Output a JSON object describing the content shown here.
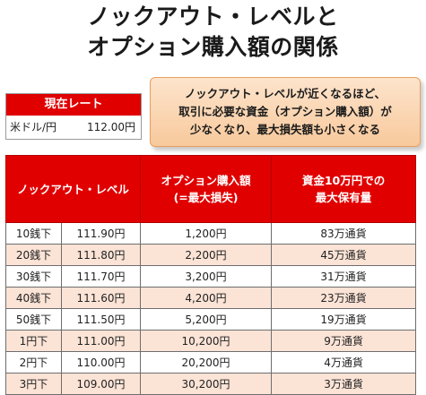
{
  "title": {
    "line1": "ノックアウト・レベルと",
    "line2": "オプション購入額の関係"
  },
  "current_rate": {
    "header": "現在レート",
    "label": "米ドル/円",
    "value": "112.00円"
  },
  "callout": {
    "line1": "ノックアウト・レベルが近くなるほど、",
    "line2": "取引に必要な資金（オプション購入額）が",
    "line3": "少なくなり、最大損失額も小さくなる"
  },
  "table": {
    "headers": {
      "knockout_level": "ノックアウト・レベル",
      "option_price_l1": "オプション購入額",
      "option_price_l2": "(=最大損失)",
      "max_holding_l1": "資金10万円での",
      "max_holding_l2": "最大保有量"
    },
    "rows": [
      {
        "step": "10銭下",
        "level": "111.90円",
        "price": "1,200円",
        "holding": "83万通貨"
      },
      {
        "step": "20銭下",
        "level": "111.80円",
        "price": "2,200円",
        "holding": "45万通貨"
      },
      {
        "step": "30銭下",
        "level": "111.70円",
        "price": "3,200円",
        "holding": "31万通貨"
      },
      {
        "step": "40銭下",
        "level": "111.60円",
        "price": "4,200円",
        "holding": "23万通貨"
      },
      {
        "step": "50銭下",
        "level": "111.50円",
        "price": "5,200円",
        "holding": "19万通貨"
      },
      {
        "step": "1円下",
        "level": "111.00円",
        "price": "10,200円",
        "holding": "9万通貨"
      },
      {
        "step": "2円下",
        "level": "110.00円",
        "price": "20,200円",
        "holding": "4万通貨"
      },
      {
        "step": "3円下",
        "level": "109.00円",
        "price": "30,200円",
        "holding": "3万通貨"
      }
    ]
  },
  "colors": {
    "header_red": "#e10000",
    "row_alt": "#fbe3d6",
    "callout_fill": "#f8c99c"
  }
}
